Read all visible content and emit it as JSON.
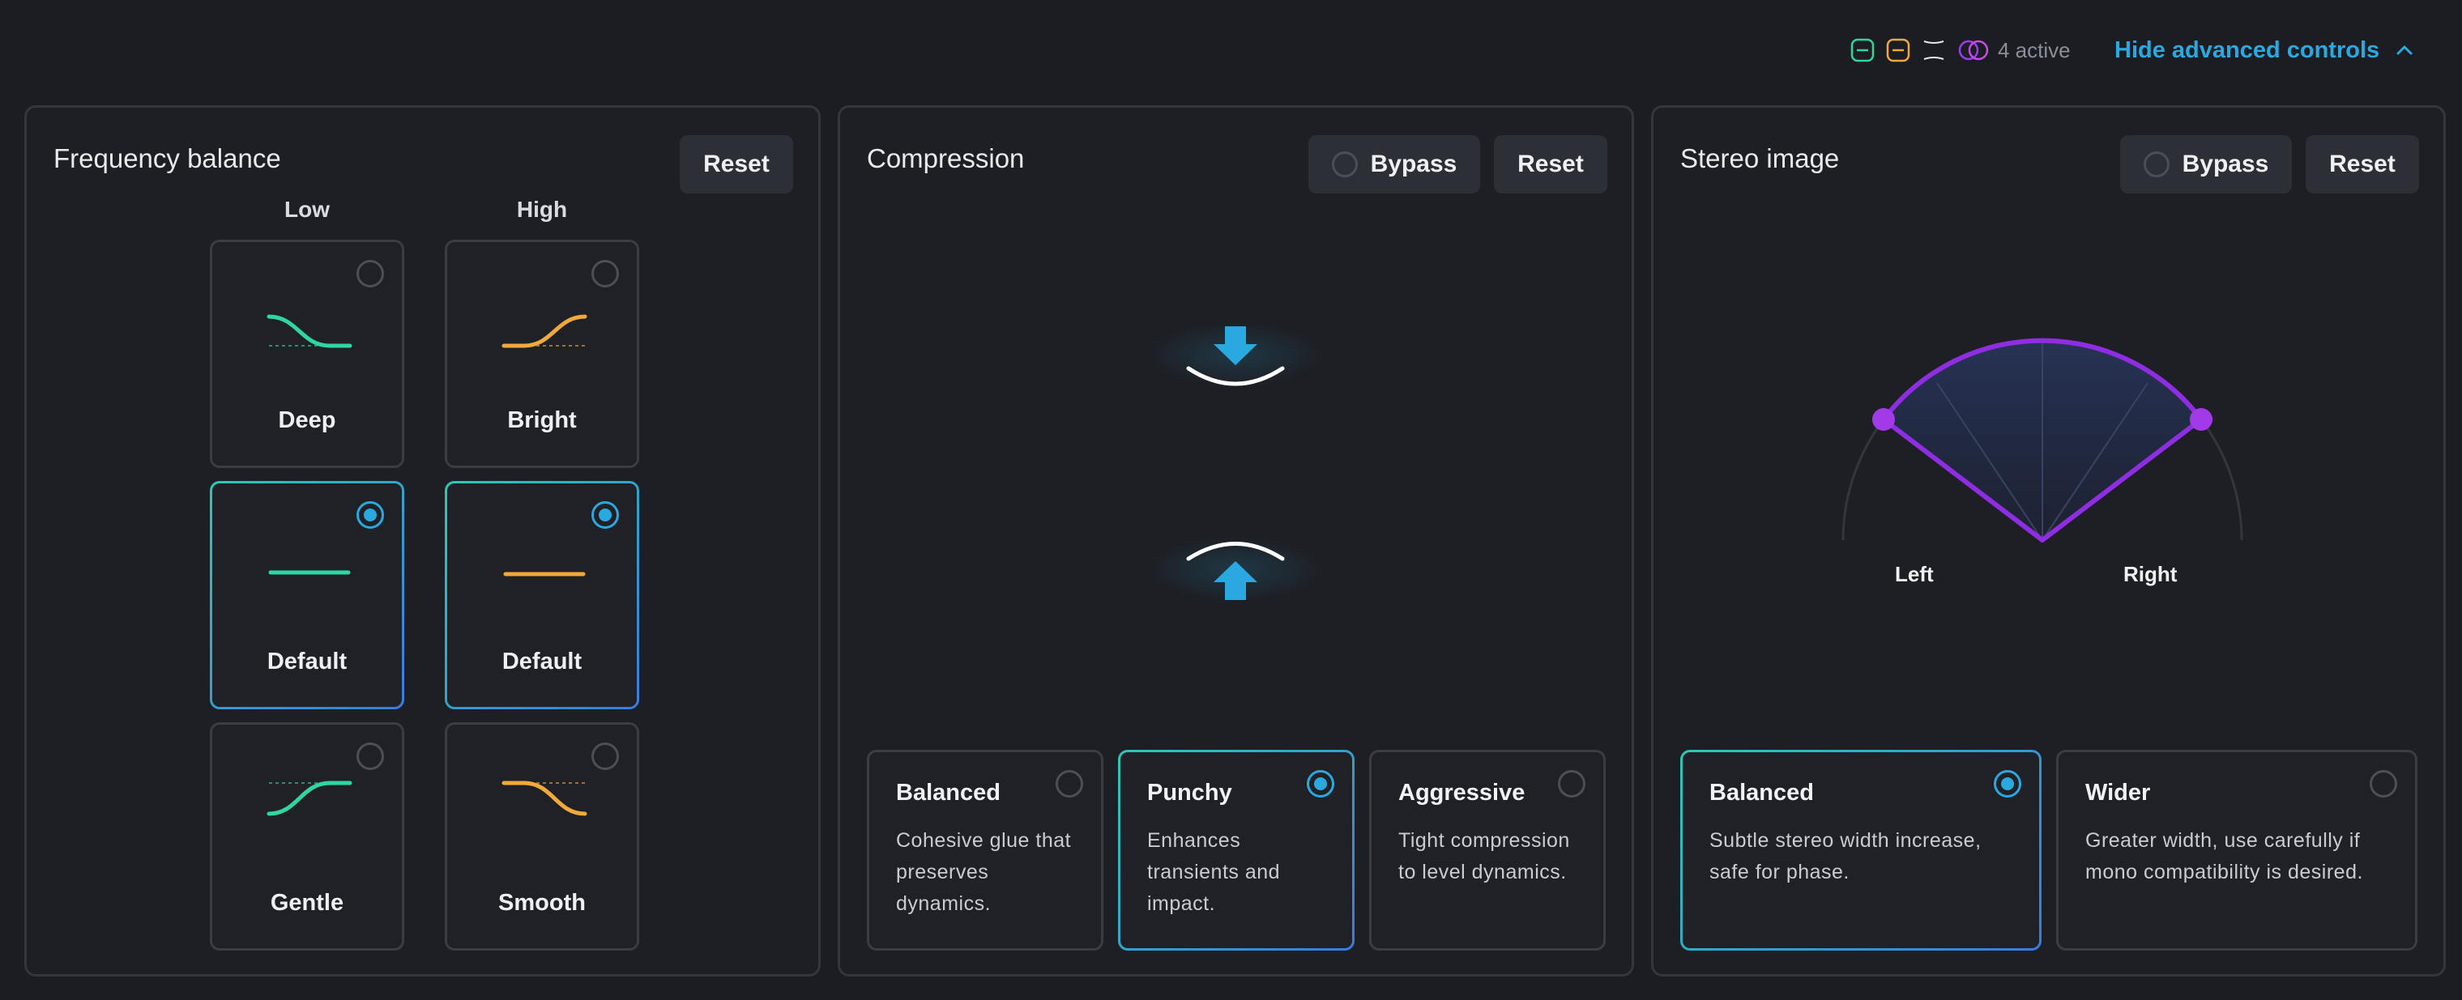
{
  "header": {
    "active_count": "4 active",
    "active_icons": [
      "low-eq-icon",
      "high-eq-icon",
      "compression-icon",
      "stereo-icon"
    ],
    "hide_advanced_label": "Hide advanced controls",
    "accent": "#29a9e0"
  },
  "frequency": {
    "title": "Frequency balance",
    "reset_label": "Reset",
    "columns": {
      "low": "Low",
      "high": "High"
    },
    "low_options": [
      {
        "label": "Deep",
        "selected": false,
        "icon": "low-shelf-cut-curve"
      },
      {
        "label": "Default",
        "selected": true,
        "icon": "flat-line"
      },
      {
        "label": "Gentle",
        "selected": false,
        "icon": "low-shelf-boost-curve"
      }
    ],
    "high_options": [
      {
        "label": "Bright",
        "selected": false,
        "icon": "high-shelf-boost-curve"
      },
      {
        "label": "Default",
        "selected": true,
        "icon": "flat-line"
      },
      {
        "label": "Smooth",
        "selected": false,
        "icon": "high-shelf-cut-curve"
      }
    ],
    "colors": {
      "low": "#2fd6a0",
      "high": "#f0a93a"
    }
  },
  "compression": {
    "title": "Compression",
    "bypass_label": "Bypass",
    "reset_label": "Reset",
    "options": [
      {
        "title": "Balanced",
        "desc": "Cohesive glue that preserves dynamics.",
        "selected": false
      },
      {
        "title": "Punchy",
        "desc": "Enhances transients and impact.",
        "selected": true
      },
      {
        "title": "Aggressive",
        "desc": "Tight compression to level dynamics.",
        "selected": false
      }
    ]
  },
  "stereo": {
    "title": "Stereo image",
    "bypass_label": "Bypass",
    "reset_label": "Reset",
    "left_label": "Left",
    "right_label": "Right",
    "options": [
      {
        "title": "Balanced",
        "desc": "Subtle stereo width increase, safe for phase.",
        "selected": true
      },
      {
        "title": "Wider",
        "desc": "Greater width, use carefully if mono compatibility is desired.",
        "selected": false
      }
    ],
    "arc_color": "#8e2de2"
  }
}
